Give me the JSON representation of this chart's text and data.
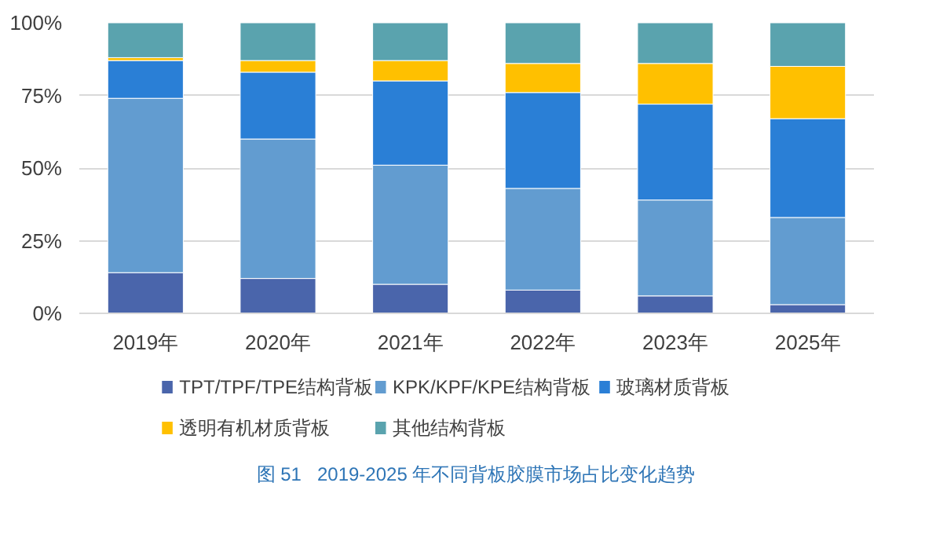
{
  "chart_data": {
    "type": "bar",
    "stacked": true,
    "categories": [
      "2019年",
      "2020年",
      "2021年",
      "2022年",
      "2023年",
      "2025年"
    ],
    "series": [
      {
        "name": "TPT/TPF/TPE结构背板",
        "color": "#4a65ab",
        "values": [
          14,
          12,
          10,
          8,
          6,
          3
        ]
      },
      {
        "name": "KPK/KPF/KPE结构背板",
        "color": "#629cd0",
        "values": [
          60,
          48,
          41,
          35,
          33,
          30
        ]
      },
      {
        "name": "玻璃材质背板",
        "color": "#2a7fd6",
        "values": [
          13,
          23,
          29,
          33,
          33,
          34
        ]
      },
      {
        "name": "透明有机材质背板",
        "color": "#ffc000",
        "values": [
          1,
          4,
          7,
          10,
          14,
          18
        ]
      },
      {
        "name": "其他结构背板",
        "color": "#5aa3ae",
        "values": [
          12,
          13,
          13,
          14,
          14,
          15
        ]
      }
    ],
    "ylim": [
      0,
      100
    ],
    "yticks": [
      {
        "value": 0,
        "label": "0%"
      },
      {
        "value": 25,
        "label": "25%"
      },
      {
        "value": 50,
        "label": "50%"
      },
      {
        "value": 75,
        "label": "75%"
      },
      {
        "value": 100,
        "label": "100%"
      }
    ],
    "grid": "y",
    "legend": "bottom",
    "annotations": [
      "图 51   2019-2025 年不同背板胶膜市场占比变化趋势"
    ]
  }
}
